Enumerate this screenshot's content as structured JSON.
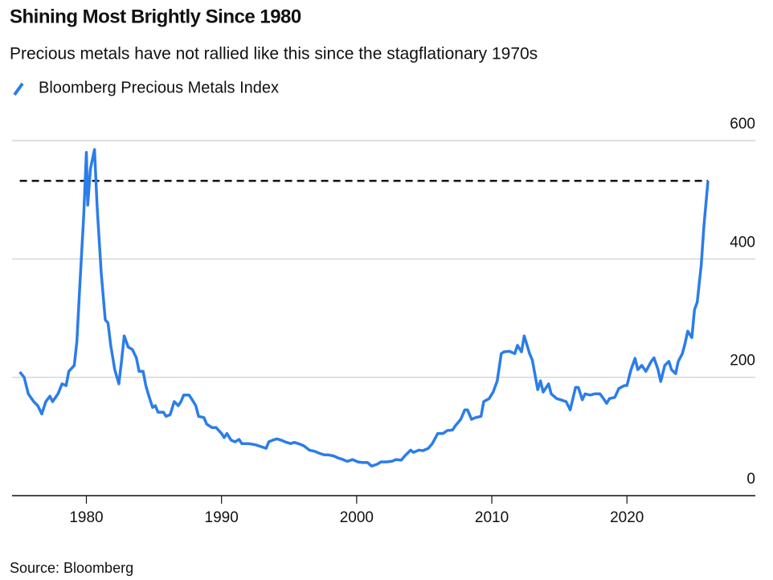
{
  "chart_data": {
    "type": "line",
    "title": "Shining Most Brightly Since 1980",
    "subtitle": "Precious metals have not rallied like this since the stagflationary 1970s",
    "source": "Source: Bloomberg",
    "series": [
      {
        "name": "Bloomberg Precious Metals Index",
        "color": "#2b7de9",
        "x": [
          1975.07,
          1975.4,
          1975.7,
          1976.1,
          1976.4,
          1976.7,
          1977.0,
          1977.3,
          1977.5,
          1977.9,
          1978.2,
          1978.5,
          1978.7,
          1979.1,
          1979.3,
          1979.5,
          1979.8,
          1980.0,
          1980.1,
          1980.3,
          1980.6,
          1980.8,
          1981.1,
          1981.4,
          1981.6,
          1981.8,
          1982.1,
          1982.4,
          1982.6,
          1982.8,
          1983.1,
          1983.4,
          1983.7,
          1983.9,
          1984.2,
          1984.4,
          1984.6,
          1984.9,
          1985.1,
          1985.3,
          1985.7,
          1985.9,
          1986.2,
          1986.5,
          1986.8,
          1987.0,
          1987.2,
          1987.6,
          1987.8,
          1988.1,
          1988.3,
          1988.7,
          1988.9,
          1989.3,
          1989.6,
          1990.0,
          1990.2,
          1990.4,
          1990.7,
          1991.0,
          1991.3,
          1991.5,
          1992.0,
          1992.5,
          1992.9,
          1993.3,
          1993.5,
          1993.8,
          1994.1,
          1994.4,
          1994.7,
          1995.1,
          1995.4,
          1995.8,
          1996.1,
          1996.5,
          1996.9,
          1997.2,
          1997.6,
          1997.9,
          1998.3,
          1998.6,
          1999.0,
          1999.3,
          1999.7,
          2000.1,
          2000.4,
          2000.8,
          2001.1,
          2001.5,
          2001.8,
          2002.2,
          2002.6,
          2002.9,
          2003.3,
          2003.6,
          2004.0,
          2004.2,
          2004.6,
          2004.9,
          2005.3,
          2005.6,
          2006.0,
          2006.4,
          2006.7,
          2007.1,
          2007.3,
          2007.7,
          2008.0,
          2008.2,
          2008.5,
          2008.8,
          2009.2,
          2009.4,
          2009.8,
          2010.1,
          2010.4,
          2010.7,
          2010.9,
          2011.3,
          2011.7,
          2011.9,
          2012.2,
          2012.4,
          2012.8,
          2013.0,
          2013.4,
          2013.6,
          2013.8,
          2014.2,
          2014.4,
          2014.8,
          2015.1,
          2015.5,
          2015.8,
          2016.2,
          2016.4,
          2016.7,
          2016.9,
          2017.3,
          2017.6,
          2018.0,
          2018.2,
          2018.5,
          2018.7,
          2019.1,
          2019.4,
          2019.8,
          2020.0,
          2020.3,
          2020.6,
          2020.8,
          2021.1,
          2021.4,
          2021.8,
          2022.0,
          2022.3,
          2022.5,
          2022.8,
          2023.1,
          2023.3,
          2023.6,
          2023.8,
          2024.1,
          2024.3,
          2024.5,
          2024.8,
          2025.0,
          2025.2,
          2025.5,
          2025.7,
          2026.0
        ],
        "values": [
          209,
          200,
          172,
          159,
          152,
          138,
          159,
          168,
          159,
          172,
          189,
          186,
          210,
          220,
          261,
          349,
          471,
          580,
          491,
          552,
          585,
          485,
          376,
          297,
          292,
          254,
          213,
          189,
          227,
          270,
          251,
          247,
          233,
          210,
          210,
          186,
          170,
          149,
          152,
          141,
          141,
          134,
          137,
          159,
          152,
          159,
          170,
          170,
          163,
          152,
          134,
          132,
          121,
          115,
          115,
          105,
          98,
          105,
          94,
          91,
          95,
          88,
          88,
          86,
          83,
          80,
          91,
          94,
          96,
          94,
          91,
          88,
          90,
          87,
          84,
          77,
          75,
          72,
          69,
          69,
          67,
          64,
          61,
          58,
          61,
          57,
          56,
          56,
          50,
          53,
          57,
          57,
          58,
          61,
          60,
          68,
          77,
          73,
          77,
          76,
          80,
          88,
          105,
          105,
          110,
          111,
          118,
          129,
          145,
          145,
          129,
          132,
          134,
          159,
          164,
          175,
          194,
          240,
          243,
          244,
          240,
          254,
          243,
          270,
          240,
          229,
          179,
          194,
          175,
          189,
          172,
          164,
          162,
          159,
          145,
          183,
          183,
          162,
          172,
          170,
          172,
          172,
          166,
          156,
          164,
          166,
          181,
          186,
          186,
          213,
          232,
          213,
          220,
          210,
          227,
          233,
          213,
          193,
          220,
          227,
          213,
          206,
          227,
          240,
          257,
          278,
          267,
          314,
          327,
          390,
          457,
          532
        ]
      }
    ],
    "reference_line": 532,
    "xlim": [
      1974.5,
      2029.5
    ],
    "xticks": [
      1980,
      1990,
      2000,
      2010,
      2020
    ],
    "ylim": [
      0,
      600
    ],
    "yticks": [
      0,
      200,
      400,
      600
    ],
    "grid": true
  }
}
